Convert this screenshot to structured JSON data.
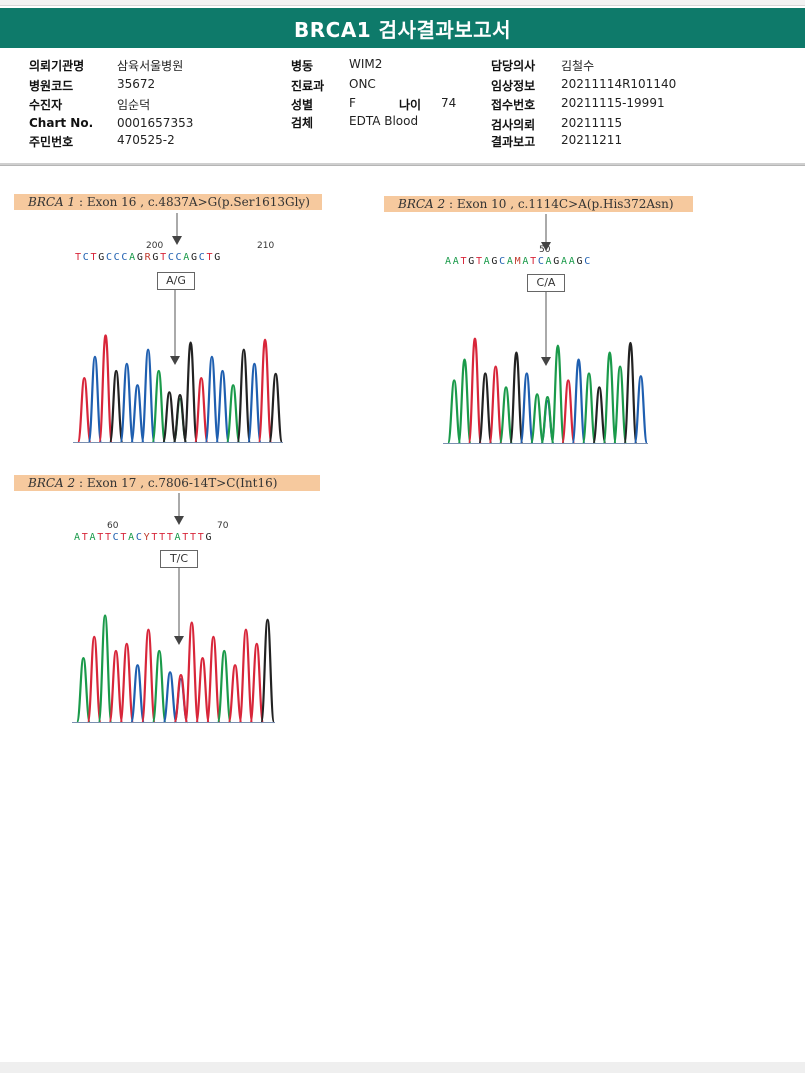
{
  "report": {
    "title": "BRCA1 검사결과보고서"
  },
  "info": {
    "col1": [
      {
        "label": "의뢰기관명",
        "value": "삼육서울병원"
      },
      {
        "label": "병원코드",
        "value": "35672"
      },
      {
        "label": "수진자",
        "value": "임순덕"
      },
      {
        "label": "Chart No.",
        "value": "0001657353"
      },
      {
        "label": "주민번호",
        "value": "470525-2"
      }
    ],
    "col2": [
      {
        "label": "병동",
        "value": "WIM2"
      },
      {
        "label": "진료과",
        "value": "ONC"
      },
      {
        "label": "성별",
        "value": "F"
      },
      {
        "label": "검체",
        "value": "EDTA Blood"
      }
    ],
    "age": {
      "label": "나이",
      "value": "74"
    },
    "col3": [
      {
        "label": "담당의사",
        "value": "김철수"
      },
      {
        "label": "임상정보",
        "value": "20211114R101140"
      },
      {
        "label": "접수번호",
        "value": "20211115-19991"
      },
      {
        "label": "검사의뢰",
        "value": "20211115"
      },
      {
        "label": "결과보고",
        "value": "20211211"
      }
    ]
  },
  "variants": [
    {
      "gene": "BRCA 1",
      "detail": " : Exon 16 , c.4837A>G(p.Ser1613Gly)",
      "call": "A/G",
      "sequence": "TCTGCCCAGRGTCCAGCTG",
      "pos_start": "200",
      "pos_end": "210"
    },
    {
      "gene": "BRCA 2",
      "detail": " : Exon 10 , c.1114C>A(p.His372Asn)",
      "call": "C/A",
      "sequence": "AATGTAGCAMATCAGAAGC",
      "pos_start": "50",
      "pos_end": ""
    },
    {
      "gene": "BRCA 2",
      "detail": " : Exon 17 , c.7806-14T>C(Int16)",
      "call": "T/C",
      "sequence": "ATATTCTACYTTTATTTG",
      "pos_start": "60",
      "pos_end": "70"
    }
  ],
  "colors": {
    "header": "#0e7a6a",
    "label_bg": "#f6c99e",
    "base_A": "#1a9a4a",
    "base_C": "#1f5fb0",
    "base_G": "#222222",
    "base_T": "#d8263a"
  }
}
